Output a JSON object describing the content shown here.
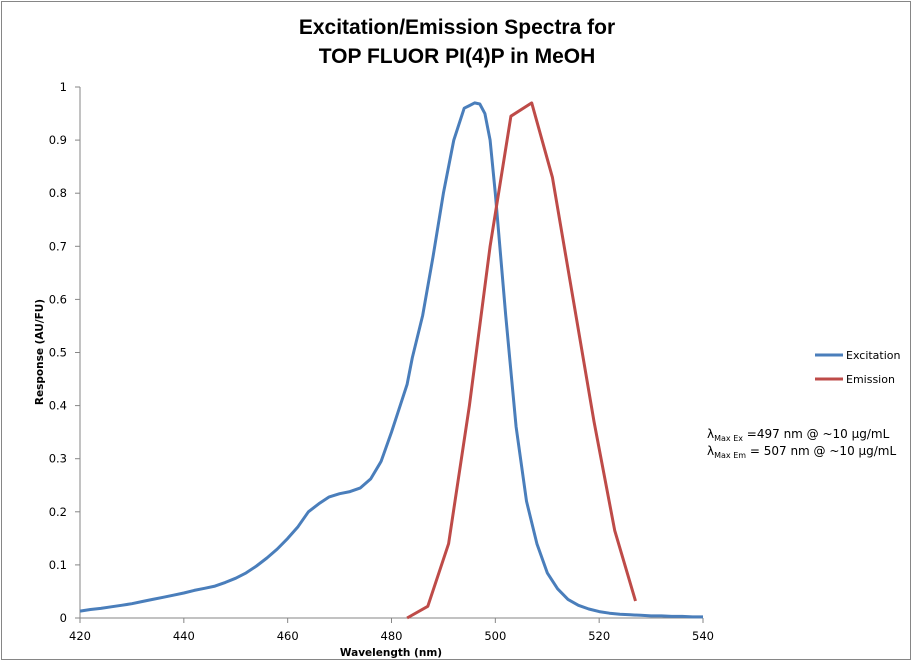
{
  "chart_data": {
    "type": "line",
    "title": [
      "Excitation/Emission Spectra for",
      "TOP FLUOR PI(4)P in MeOH"
    ],
    "xlabel": "Wavelength (nm)",
    "ylabel": "Response (AU/FU)",
    "xlim": [
      420,
      540
    ],
    "ylim": [
      0,
      1
    ],
    "xticks": [
      420,
      440,
      460,
      480,
      500,
      520,
      540
    ],
    "yticks": [
      0,
      0.1,
      0.2,
      0.3,
      0.4,
      0.5,
      0.6,
      0.7,
      0.8,
      0.9,
      1
    ],
    "ytick_labels": [
      "0",
      "0.1",
      "0.2",
      "0.3",
      "0.4",
      "0.5",
      "0.6",
      "0.7",
      "0.8",
      "0.9",
      "1"
    ],
    "grid": false,
    "legend_position": "right",
    "series": [
      {
        "name": "Excitation",
        "color": "#4a7ebb",
        "x": [
          420,
          422,
          424,
          426,
          428,
          430,
          432,
          434,
          436,
          438,
          440,
          442,
          444,
          446,
          448,
          450,
          452,
          454,
          456,
          458,
          460,
          462,
          464,
          466,
          468,
          470,
          472,
          474,
          476,
          478,
          480,
          482,
          483,
          484,
          486,
          488,
          490,
          492,
          494,
          495,
          496,
          497,
          498,
          499,
          500,
          502,
          504,
          506,
          508,
          510,
          512,
          514,
          516,
          518,
          520,
          522,
          524,
          526,
          528,
          530,
          532,
          534,
          536,
          538,
          540
        ],
        "y": [
          0.013,
          0.016,
          0.018,
          0.021,
          0.024,
          0.027,
          0.031,
          0.035,
          0.039,
          0.043,
          0.047,
          0.052,
          0.056,
          0.06,
          0.067,
          0.075,
          0.085,
          0.098,
          0.113,
          0.13,
          0.15,
          0.172,
          0.2,
          0.215,
          0.228,
          0.234,
          0.238,
          0.245,
          0.262,
          0.295,
          0.35,
          0.41,
          0.44,
          0.49,
          0.57,
          0.68,
          0.8,
          0.9,
          0.96,
          0.965,
          0.97,
          0.968,
          0.95,
          0.9,
          0.8,
          0.57,
          0.36,
          0.22,
          0.14,
          0.085,
          0.055,
          0.035,
          0.024,
          0.017,
          0.012,
          0.009,
          0.007,
          0.006,
          0.005,
          0.004,
          0.004,
          0.003,
          0.003,
          0.002,
          0.002
        ]
      },
      {
        "name": "Emission",
        "color": "#be4b48",
        "x": [
          483,
          487,
          491,
          495,
          499,
          503,
          507,
          511,
          515,
          519,
          523,
          527
        ],
        "y": [
          0.0,
          0.022,
          0.14,
          0.4,
          0.7,
          0.945,
          0.97,
          0.83,
          0.6,
          0.37,
          0.165,
          0.032
        ]
      }
    ],
    "annotations": [
      {
        "symbol": "λ",
        "subscript": "Max Ex",
        "text": " =497 nm @ ~10 µg/mL"
      },
      {
        "symbol": "λ",
        "subscript": "Max Em",
        "text": " = 507 nm @ ~10 µg/mL"
      }
    ]
  }
}
